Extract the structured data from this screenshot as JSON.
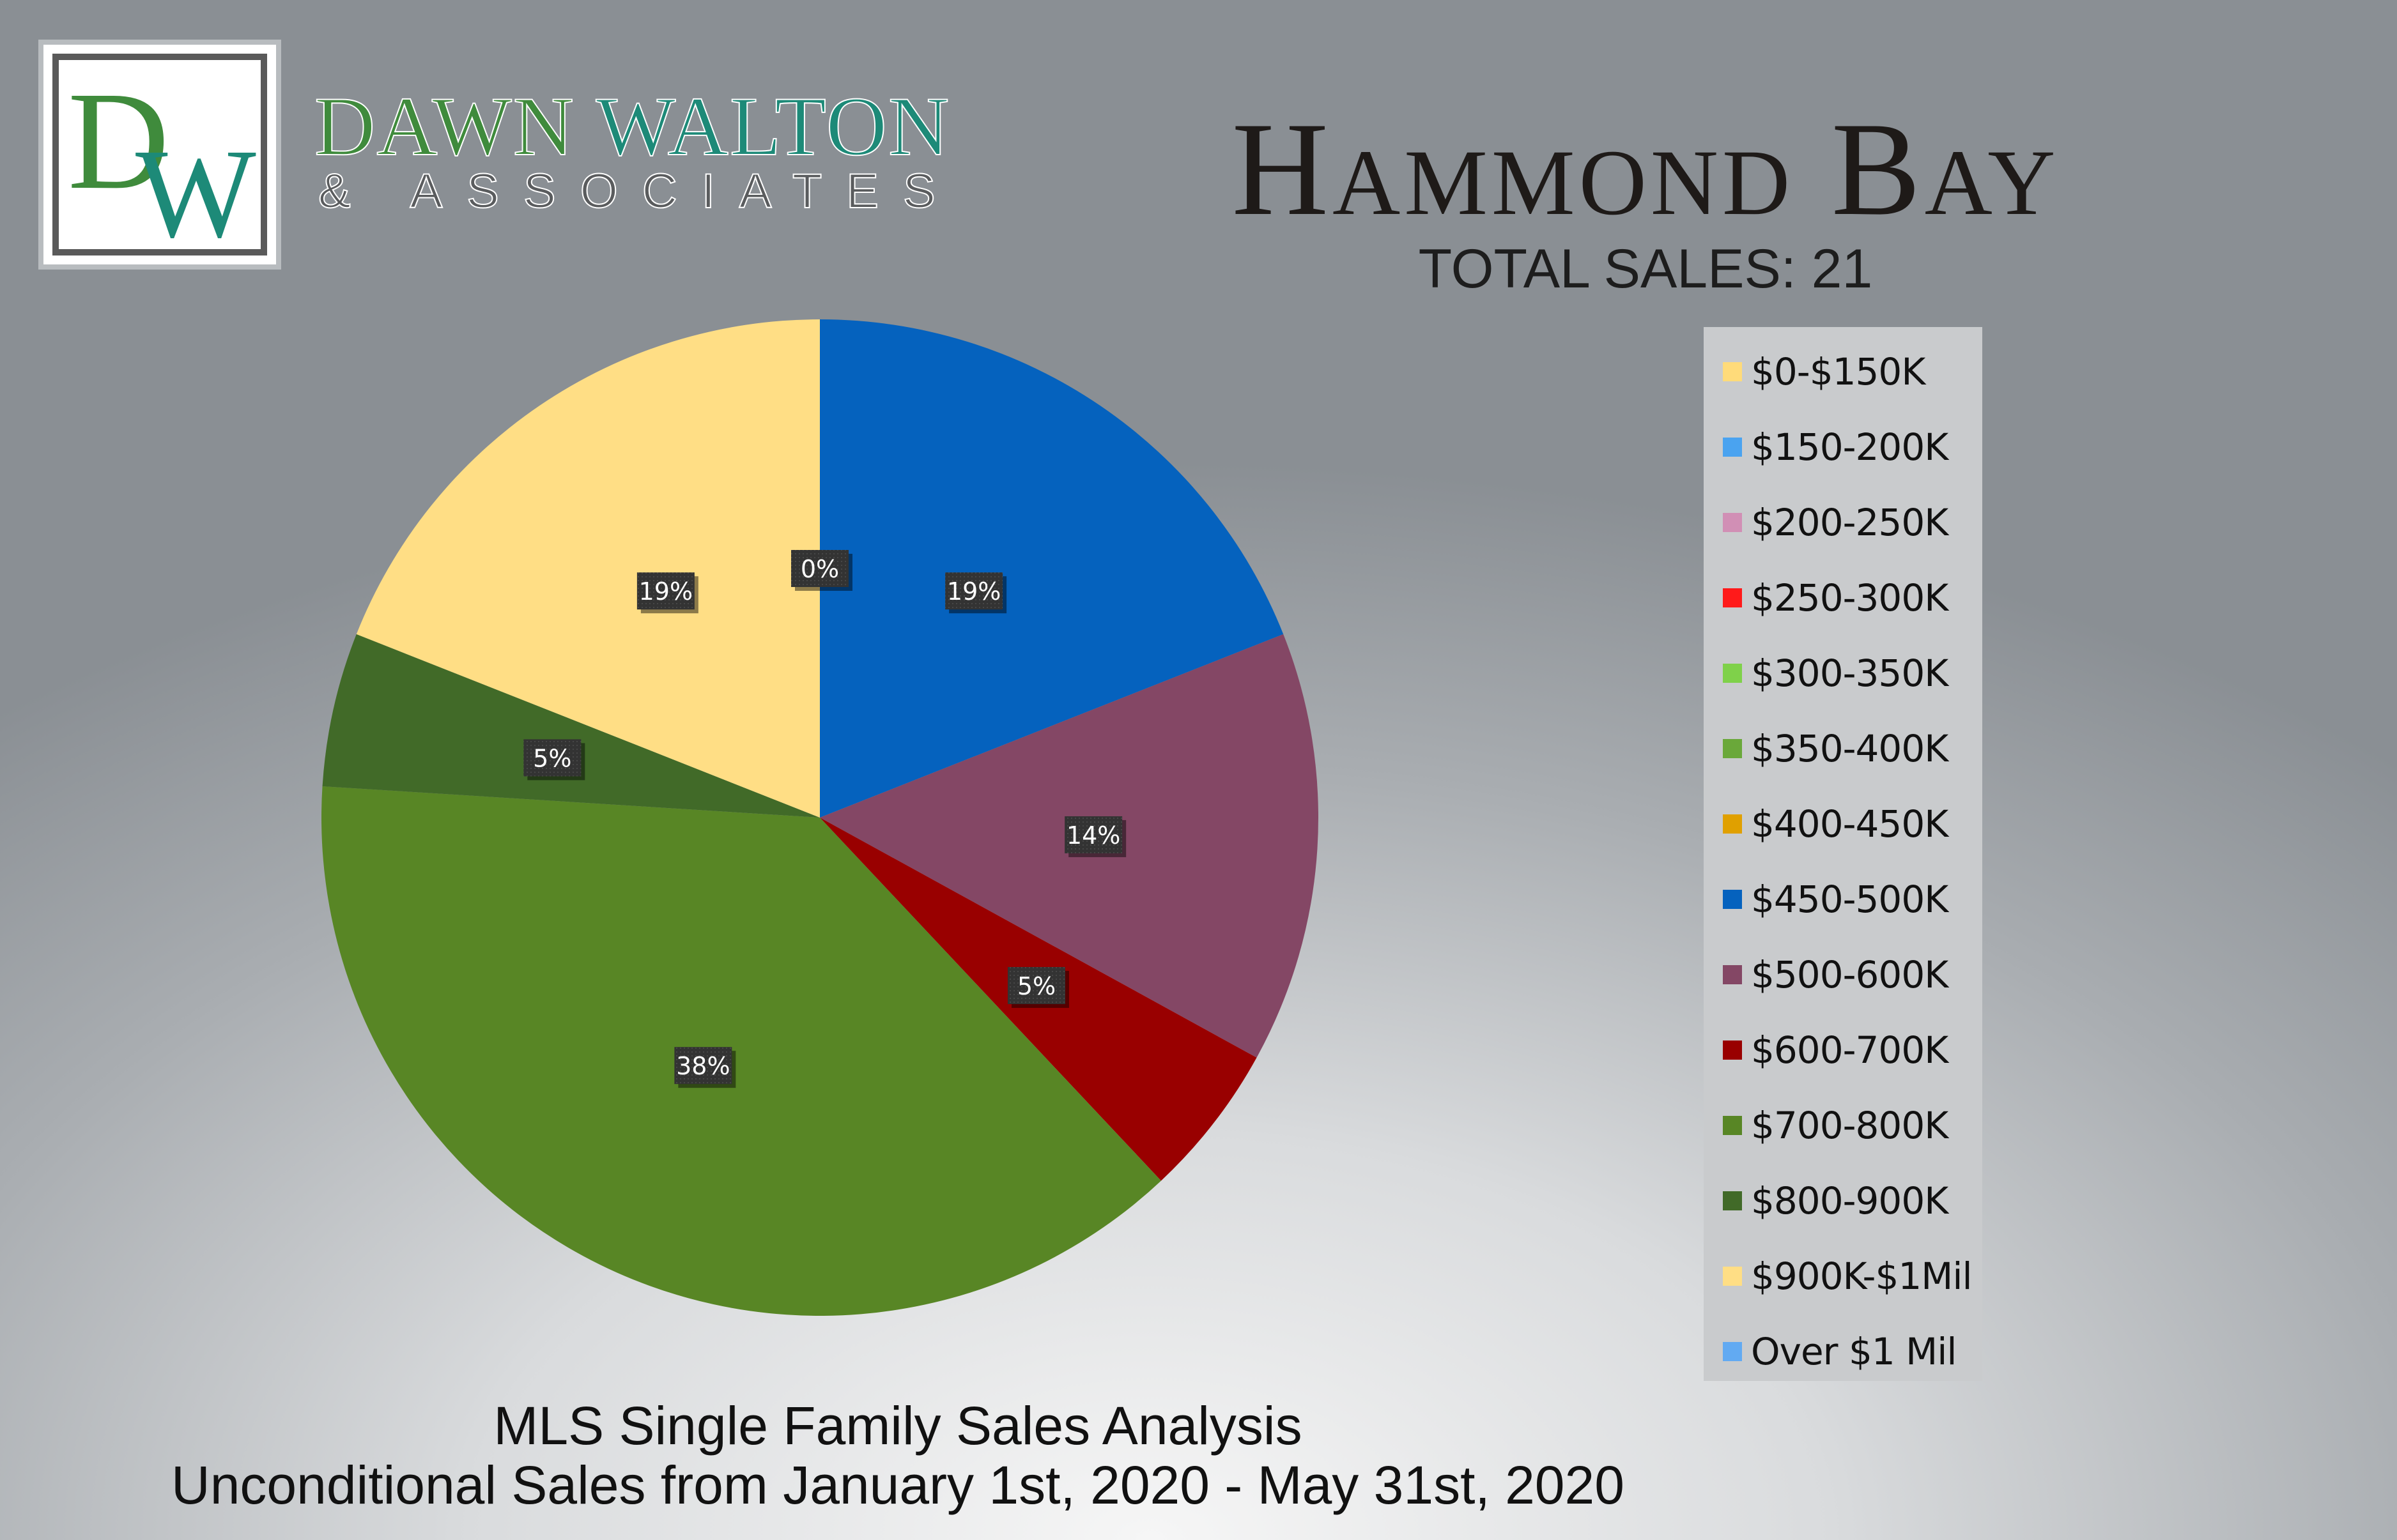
{
  "brand": {
    "logo_letters": "DW",
    "name_part1": "DAWN",
    "name_part2": "WALTON",
    "subtitle": "& ASSOCIATES"
  },
  "header": {
    "title": "Hammond Bay",
    "total_sales": "TOTAL SALES: 21"
  },
  "footer": {
    "line1": "MLS Single Family Sales Analysis",
    "line2": "Unconditional Sales from January 1st, 2020 - May 31st, 2020"
  },
  "chart_data": {
    "type": "pie",
    "title": "",
    "legend_position": "right",
    "categories": [
      "$0-$150K",
      "$150-200K",
      "$200-250K",
      "$250-300K",
      "$300-350K",
      "$350-400K",
      "$400-450K",
      "$450-500K",
      "$500-600K",
      "$600-700K",
      "$700-800K",
      "$800-900K",
      "$900K-$1Mil",
      "Over $1 Mil"
    ],
    "values": [
      0,
      0,
      0,
      0,
      0,
      0,
      0,
      19,
      14,
      5,
      38,
      5,
      19,
      0
    ],
    "data_labels": [
      "0%",
      "",
      "",
      "",
      "",
      "",
      "",
      "19%",
      "14%",
      "5%",
      "38%",
      "5%",
      "19%",
      ""
    ],
    "colors": [
      "#ffdb7a",
      "#4aa3f0",
      "#d18fb5",
      "#ff1a1a",
      "#7fd14a",
      "#6aa83a",
      "#e0a000",
      "#0562be",
      "#844765",
      "#990000",
      "#588625",
      "#416a28",
      "#ffde85",
      "#62aaf2"
    ]
  }
}
